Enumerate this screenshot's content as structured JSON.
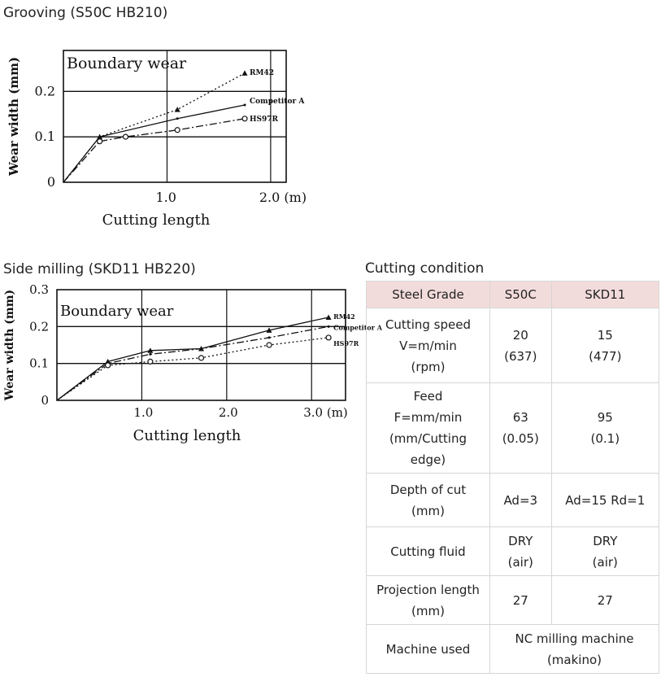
{
  "headings": {
    "grooving": "Grooving (S50C HB210)",
    "side_milling": "Side milling (SKD11 HB220)",
    "cutting_condition": "Cutting condition"
  },
  "chart_data": [
    {
      "type": "line",
      "inner_title": "Boundary wear",
      "xlabel": "Cutting length",
      "ylabel": "Wear width (mm)",
      "xlim": [
        0,
        2.15
      ],
      "ylim": [
        0,
        0.29
      ],
      "x_tick_labels": [
        {
          "value": 1.0,
          "label": "1.0"
        },
        {
          "value": 2.0,
          "label": "2.0 (m)"
        }
      ],
      "y_tick_labels": [
        {
          "value": 0,
          "label": "0"
        },
        {
          "value": 0.1,
          "label": "0.1"
        },
        {
          "value": 0.2,
          "label": "0.2"
        }
      ],
      "grid": true,
      "series": [
        {
          "name": "RM42",
          "style": "dotted",
          "marker": "triangle",
          "x": [
            0,
            0.35,
            1.1,
            1.75
          ],
          "y": [
            0,
            0.1,
            0.16,
            0.24
          ]
        },
        {
          "name": "Competitor A",
          "style": "solid",
          "marker": "none",
          "x": [
            0,
            0.35,
            1.1,
            1.75
          ],
          "y": [
            0,
            0.1,
            0.14,
            0.17
          ]
        },
        {
          "name": "HS97R",
          "style": "dashdot",
          "marker": "circle",
          "x": [
            0,
            0.35,
            0.6,
            1.1,
            1.75
          ],
          "y": [
            0,
            0.09,
            0.1,
            0.115,
            0.14
          ]
        }
      ]
    },
    {
      "type": "line",
      "inner_title": "Boundary wear",
      "xlabel": "Cutting length",
      "ylabel": "Wear width (mm)",
      "xlim": [
        0,
        3.4
      ],
      "ylim": [
        0,
        0.3
      ],
      "x_tick_labels": [
        {
          "value": 1.0,
          "label": "1.0"
        },
        {
          "value": 2.0,
          "label": "2.0"
        },
        {
          "value": 3.0,
          "label": "3.0 (m)"
        }
      ],
      "y_tick_labels": [
        {
          "value": 0,
          "label": "0"
        },
        {
          "value": 0.1,
          "label": "0.1"
        },
        {
          "value": 0.2,
          "label": "0.2"
        },
        {
          "value": 0.3,
          "label": "0.3"
        }
      ],
      "grid": true,
      "series": [
        {
          "name": "RM42",
          "style": "solid",
          "marker": "triangle",
          "x": [
            0,
            0.6,
            1.1,
            1.7,
            2.5,
            3.2
          ],
          "y": [
            0,
            0.105,
            0.135,
            0.14,
            0.19,
            0.225
          ]
        },
        {
          "name": "Competitor A",
          "style": "dashdot",
          "marker": "none",
          "x": [
            0,
            0.6,
            1.1,
            1.7,
            2.5,
            3.2
          ],
          "y": [
            0,
            0.1,
            0.125,
            0.14,
            0.17,
            0.2
          ]
        },
        {
          "name": "HS97R",
          "style": "dotted",
          "marker": "circle",
          "x": [
            0,
            0.6,
            1.1,
            1.7,
            2.5,
            3.2
          ],
          "y": [
            0,
            0.095,
            0.105,
            0.115,
            0.15,
            0.17
          ]
        }
      ]
    }
  ],
  "condition_table": {
    "headers": [
      "Steel Grade",
      "S50C",
      "SKD11"
    ],
    "rows": [
      {
        "label": [
          "Cutting speed",
          "V=m/min",
          "(rpm)"
        ],
        "s50c": [
          "20",
          "(637)"
        ],
        "skd11": [
          "15",
          "(477)"
        ]
      },
      {
        "label": [
          "Feed",
          "F=mm/min",
          "(mm/Cutting",
          "edge)"
        ],
        "s50c": [
          "63",
          "(0.05)"
        ],
        "skd11": [
          "95",
          "(0.1)"
        ]
      },
      {
        "label": [
          "Depth of cut",
          "(mm)"
        ],
        "s50c": [
          "Ad=3"
        ],
        "skd11": [
          "Ad=15 Rd=1"
        ]
      },
      {
        "label": [
          "Cutting fluid"
        ],
        "s50c": [
          "DRY",
          "(air)"
        ],
        "skd11": [
          "DRY",
          "(air)"
        ]
      },
      {
        "label": [
          "Projection length",
          "(mm)"
        ],
        "s50c": [
          "27"
        ],
        "skd11": [
          "27"
        ]
      },
      {
        "label": [
          "Machine used"
        ],
        "merged": [
          "NC milling machine",
          "(makino)"
        ]
      }
    ],
    "header_color": "#f2dcdb"
  }
}
